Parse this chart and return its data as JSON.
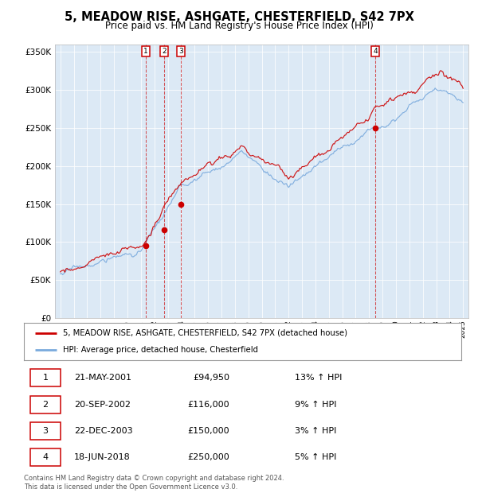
{
  "title": "5, MEADOW RISE, ASHGATE, CHESTERFIELD, S42 7PX",
  "subtitle": "Price paid vs. HM Land Registry's House Price Index (HPI)",
  "title_fontsize": 10.5,
  "subtitle_fontsize": 8.5,
  "plot_bg_color": "#dce9f5",
  "outer_bg_color": "#ffffff",
  "hpi_color": "#7aaadd",
  "price_color": "#cc0000",
  "ylim": [
    0,
    360000
  ],
  "yticks": [
    0,
    50000,
    100000,
    150000,
    200000,
    250000,
    300000,
    350000
  ],
  "ytick_labels": [
    "£0",
    "£50K",
    "£100K",
    "£150K",
    "£200K",
    "£250K",
    "£300K",
    "£350K"
  ],
  "xstart_year": 1995,
  "xend_year": 2025,
  "transactions": [
    {
      "num": 1,
      "date_decimal": 2001.38,
      "price": 94950
    },
    {
      "num": 2,
      "date_decimal": 2002.72,
      "price": 116000
    },
    {
      "num": 3,
      "date_decimal": 2003.97,
      "price": 150000
    },
    {
      "num": 4,
      "date_decimal": 2018.46,
      "price": 250000
    }
  ],
  "legend_entries": [
    "5, MEADOW RISE, ASHGATE, CHESTERFIELD, S42 7PX (detached house)",
    "HPI: Average price, detached house, Chesterfield"
  ],
  "table_rows": [
    [
      "1",
      "21-MAY-2001",
      "£94,950",
      "13% ↑ HPI"
    ],
    [
      "2",
      "20-SEP-2002",
      "£116,000",
      "9% ↑ HPI"
    ],
    [
      "3",
      "22-DEC-2003",
      "£150,000",
      "3% ↑ HPI"
    ],
    [
      "4",
      "18-JUN-2018",
      "£250,000",
      "5% ↑ HPI"
    ]
  ],
  "footer": "Contains HM Land Registry data © Crown copyright and database right 2024.\nThis data is licensed under the Open Government Licence v3.0."
}
